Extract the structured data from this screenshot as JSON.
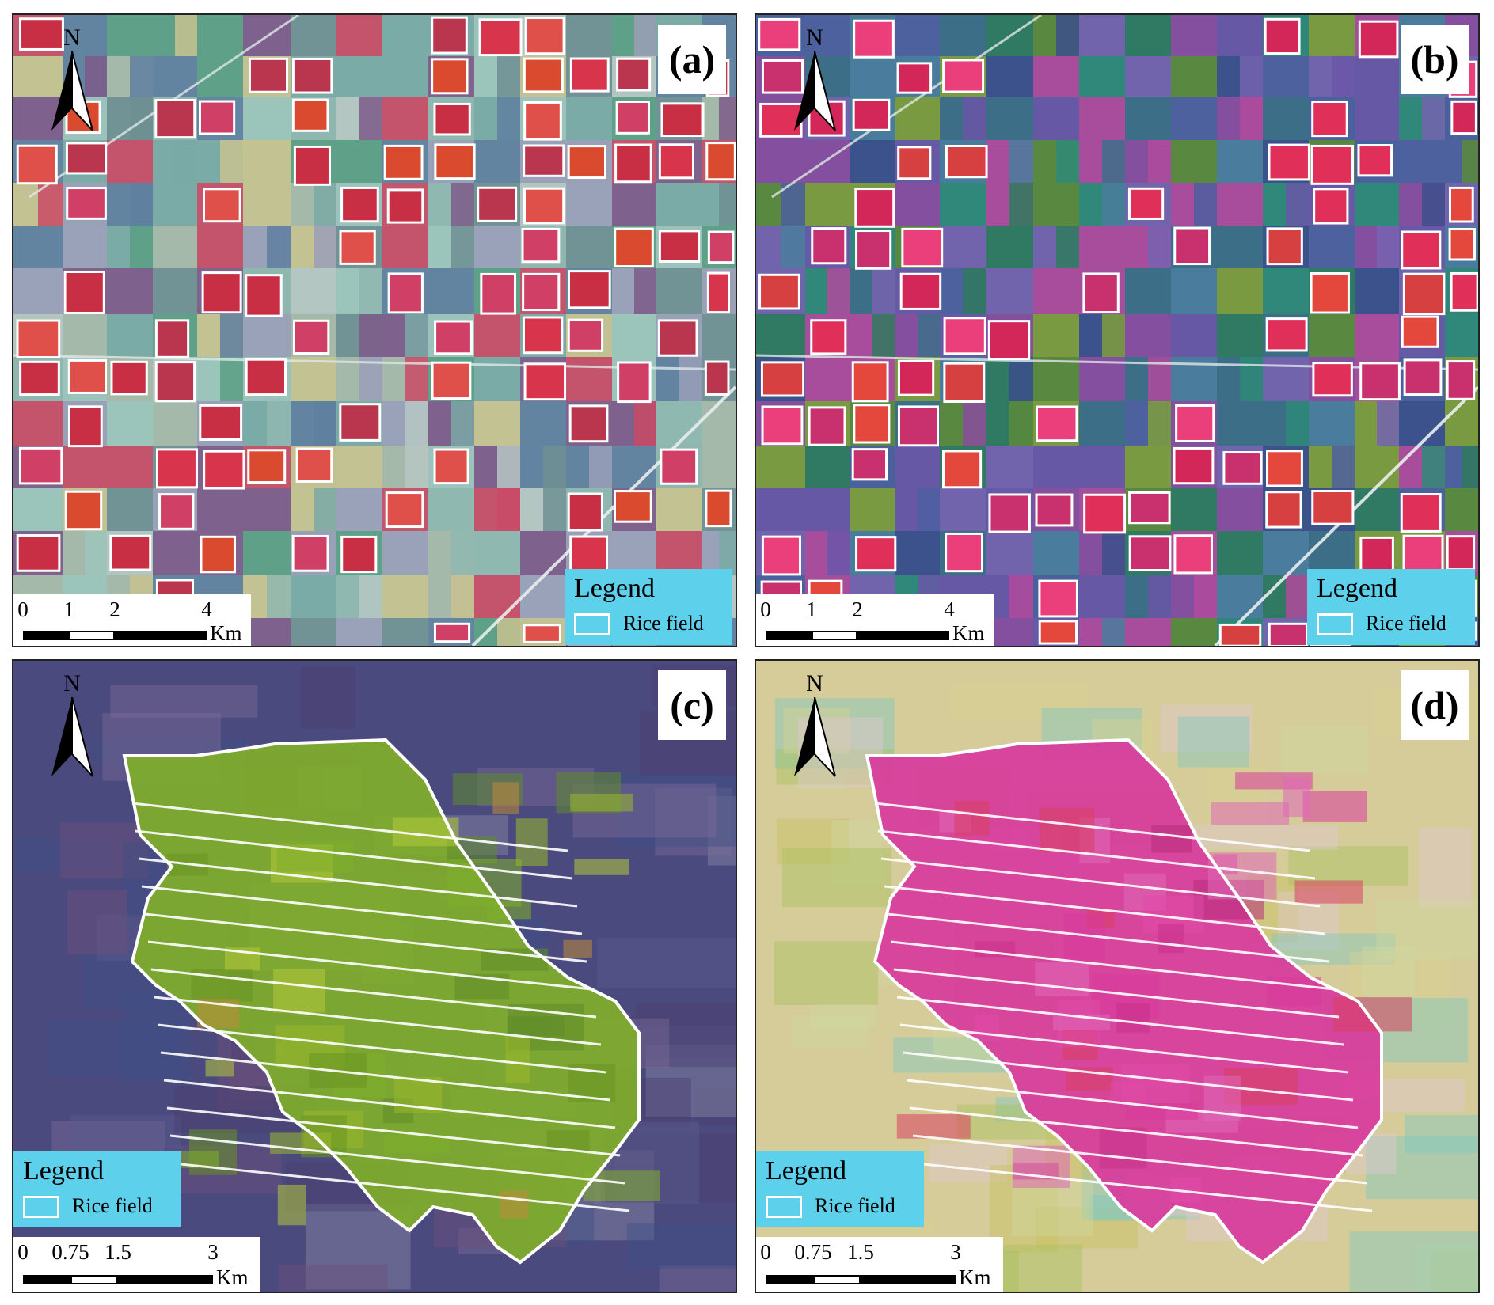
{
  "panels": [
    {
      "id": "a",
      "label": "(a)",
      "north": "N",
      "legend": {
        "title": "Legend",
        "item": "Rice field"
      },
      "scale": {
        "ticks": [
          "0",
          "1",
          "2",
          "4"
        ],
        "unit": "Km"
      }
    },
    {
      "id": "b",
      "label": "(b)",
      "north": "N",
      "legend": {
        "title": "Legend",
        "item": "Rice field"
      },
      "scale": {
        "ticks": [
          "0",
          "1",
          "2",
          "4"
        ],
        "unit": "Km"
      }
    },
    {
      "id": "c",
      "label": "(c)",
      "north": "N",
      "legend": {
        "title": "Legend",
        "item": "Rice field"
      },
      "scale": {
        "ticks": [
          "0",
          "0.75",
          "1.5",
          "3"
        ],
        "unit": "Km"
      }
    },
    {
      "id": "d",
      "label": "(d)",
      "north": "N",
      "legend": {
        "title": "Legend",
        "item": "Rice field"
      },
      "scale": {
        "ticks": [
          "0",
          "0.75",
          "1.5",
          "3"
        ],
        "unit": "Km"
      }
    }
  ],
  "colors": {
    "legend_bg": "#5dd0ec",
    "rice_outline": "#ffffff",
    "panel_a_base": "#8fb7b0",
    "panel_b_base": "#3d6e88",
    "panel_c_base": "#4b4a7e",
    "panel_d_base": "#d5cc9a",
    "rice_fill_a": "#d8344c",
    "rice_fill_b": "#e0305a",
    "rice_fill_c": "#7fae2a",
    "rice_fill_d": "#d83a9c"
  }
}
